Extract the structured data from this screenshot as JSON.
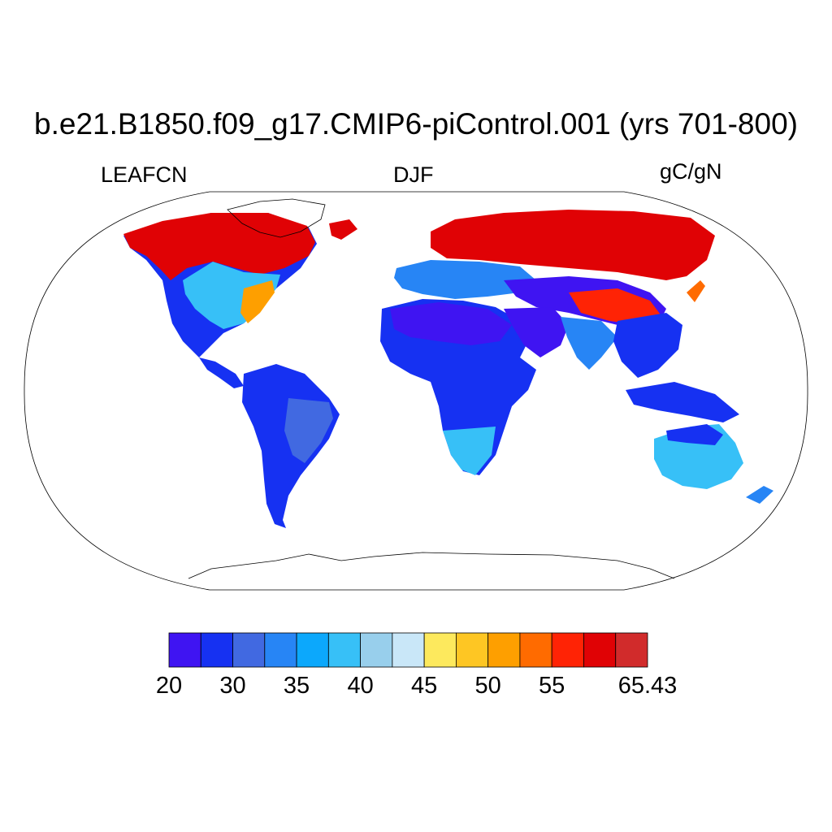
{
  "title": "b.e21.B1850.f09_g17.CMIP6-piControl.001 (yrs 701-800)",
  "variable": "LEAFCN",
  "season": "DJF",
  "units": "gC/gN",
  "colorbar": {
    "colors": [
      "#3f14f2",
      "#1631f2",
      "#4169e1",
      "#2785f5",
      "#0ca8fc",
      "#37c0f7",
      "#98cfec",
      "#c9e7f8",
      "#fde95d",
      "#fec623",
      "#fe9f00",
      "#ff6b00",
      "#ff2305",
      "#e00205",
      "#d12b2b"
    ],
    "tick_labels": [
      "20",
      "30",
      "35",
      "40",
      "45",
      "50",
      "55",
      "65.43"
    ]
  }
}
